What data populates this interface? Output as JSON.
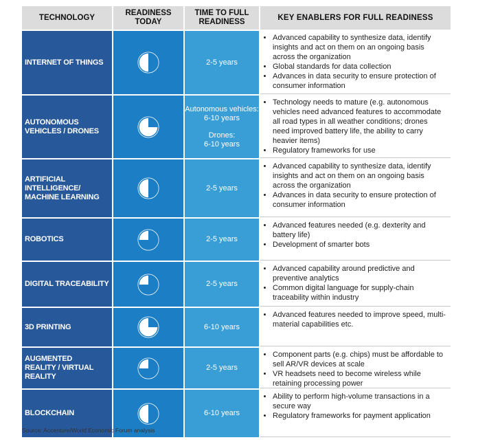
{
  "headers": {
    "technology": "TECHNOLOGY",
    "readiness_line1": "READINESS",
    "readiness_line2": "TODAY",
    "time_line1": "TIME TO FULL",
    "time_line2": "READINESS",
    "enablers": "KEY ENABLERS FOR FULL READINESS"
  },
  "rows": [
    {
      "tech_lines": [
        "INTERNET OF THINGS"
      ],
      "readiness_fraction": 0.5,
      "time_lines": [
        "2-5 years"
      ],
      "enablers": [
        "Advanced capability to synthesize data, identify insights and act on them on an ongoing basis across the organization",
        "Global standards for data collection",
        "Advances in data security to ensure protection of consumer information"
      ]
    },
    {
      "tech_lines": [
        "AUTONOMOUS",
        "VEHICLES / DRONES"
      ],
      "readiness_fraction": 0.25,
      "time_lines": [
        "Autonomous vehicles:",
        "6-10 years",
        "",
        "Drones:",
        "6-10 years"
      ],
      "enablers": [
        "Technology needs to mature (e.g. autonomous vehicles need advanced features to accommodate all road types in all weather conditions; drones need improved battery life, the ability to carry heavier items)",
        "Regulatory frameworks for use"
      ]
    },
    {
      "tech_lines": [
        "ARTIFICIAL",
        "INTELLIGENCE/",
        "MACHINE LEARNING"
      ],
      "readiness_fraction": 0.5,
      "time_lines": [
        "2-5 years"
      ],
      "enablers": [
        "Advanced capability to synthesize data, identify insights and act on them on an ongoing basis across the organization",
        "Advances in data security to ensure protection of consumer information"
      ]
    },
    {
      "tech_lines": [
        "ROBOTICS"
      ],
      "readiness_fraction": 0.75,
      "time_lines": [
        "2-5 years"
      ],
      "enablers": [
        "Advanced features needed (e.g. dexterity and battery life)",
        "Development of smarter bots"
      ]
    },
    {
      "tech_lines": [
        "DIGITAL TRACEABILITY"
      ],
      "readiness_fraction": 0.75,
      "time_lines": [
        "2-5 years"
      ],
      "enablers": [
        "Advanced capability around predictive and preventive analytics",
        "Common digital language for supply-chain traceability within industry"
      ]
    },
    {
      "tech_lines": [
        "3D PRINTING"
      ],
      "readiness_fraction": 0.25,
      "time_lines": [
        "6-10 years"
      ],
      "enablers": [
        "Advanced features needed to improve speed, multi-material capabilities etc."
      ]
    },
    {
      "tech_lines": [
        "AUGMENTED",
        "REALITY / VIRTUAL",
        "REALITY"
      ],
      "readiness_fraction": 0.75,
      "time_lines": [
        "2-5 years"
      ],
      "enablers": [
        "Component parts (e.g. chips) must be affordable to sell AR/VR devices at scale",
        "VR headsets need to become wireless while retaining processing power"
      ]
    },
    {
      "tech_lines": [
        "BLOCKCHAIN"
      ],
      "readiness_fraction": 0.5,
      "time_lines": [
        "6-10 years"
      ],
      "enablers": [
        "Ability to perform high-volume transactions in a secure way",
        "Regulatory frameworks for payment application"
      ]
    }
  ],
  "source": "Source: Accenture/World Economic Forum analysis",
  "colors": {
    "header_bg": "#dcdcdc",
    "tech_bg": "#27589a",
    "readiness_bg": "#1c7ec4",
    "time_bg": "#3a9ed6"
  }
}
